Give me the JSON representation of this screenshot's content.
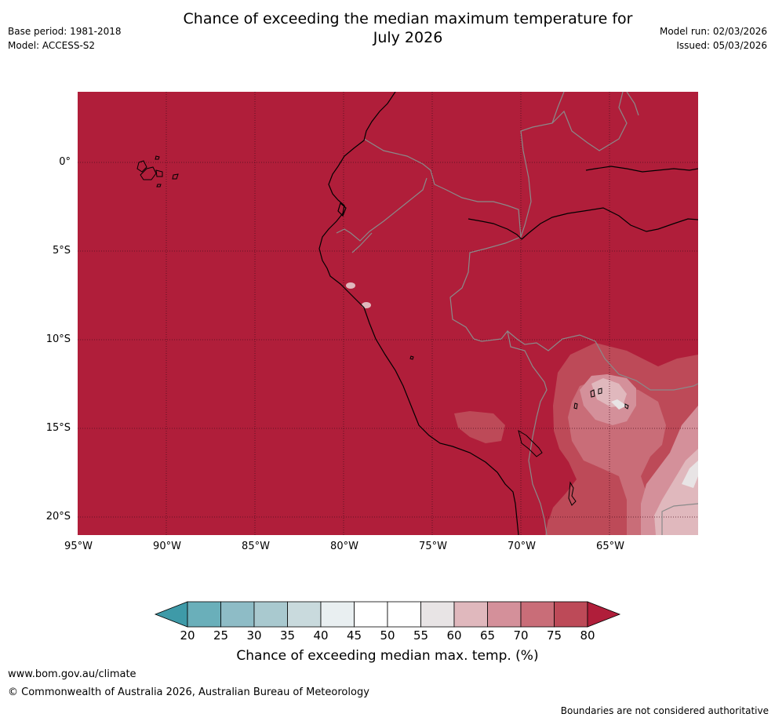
{
  "title_line1": "Chance of exceeding the median maximum temperature for",
  "title_line2": "July 2026",
  "base_period": "Base period: 1981-2018",
  "model": "Model: ACCESS-S2",
  "model_run": "Model run: 02/03/2026",
  "issued": "Issued: 05/03/2026",
  "map": {
    "lat_labels": [
      "0°",
      "5°S",
      "10°S",
      "15°S",
      "20°S"
    ],
    "lon_labels": [
      "95°W",
      "90°W",
      "85°W",
      "80°W",
      "75°W",
      "70°W",
      "65°W"
    ]
  },
  "colorbar": {
    "ticks": [
      "20",
      "25",
      "30",
      "35",
      "40",
      "45",
      "50",
      "55",
      "60",
      "65",
      "70",
      "75",
      "80"
    ],
    "colors": [
      "#3e9aa8",
      "#6aafba",
      "#8ebcc6",
      "#a9c9cf",
      "#c9dadd",
      "#e9eff1",
      "#ffffff",
      "#ffffff",
      "#e8e4e5",
      "#e0b8bd",
      "#d4909a",
      "#c96d78",
      "#bd4a58",
      "#b01e3a"
    ],
    "label": "Chance of exceeding median max. temp. (%)"
  },
  "footer": {
    "website": "www.bom.gov.au/climate",
    "copyright": "© Commonwealth of Australia 2026, Australian Bureau of Meteorology",
    "disclaimer": "Boundaries are not considered authoritative"
  }
}
